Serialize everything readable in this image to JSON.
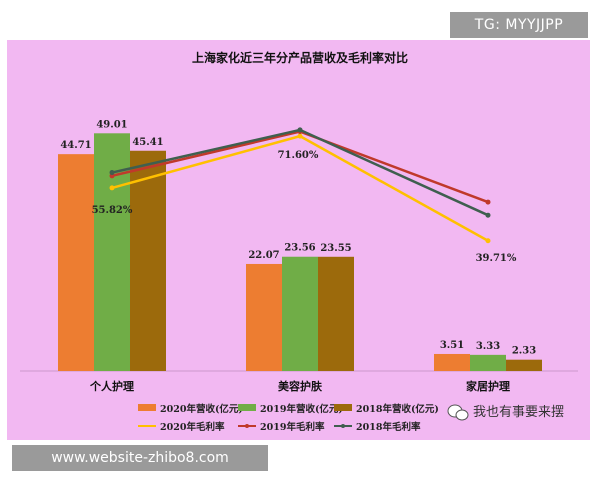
{
  "banners": {
    "top_right": "TG: MYYJJPP",
    "bottom_left": "www.website-zhibo8.com"
  },
  "watermark": "我也有事要来摆",
  "colors": {
    "background": "#f2b8f2",
    "revenue_2020": "#ed7d31",
    "revenue_2019": "#70ad47",
    "revenue_2018": "#9c6a0c",
    "margin_2020": "#ffc000",
    "margin_2019": "#c0392b",
    "margin_2018": "#3f5f4f"
  },
  "chart_data": {
    "type": "bar",
    "title": "上海家化近三年分产品营收及毛利率对比",
    "categories": [
      "个人护理",
      "美容护肤",
      "家居护理"
    ],
    "series": [
      {
        "name": "2020年营收(亿元)",
        "kind": "bar",
        "values": [
          44.71,
          22.07,
          3.51
        ],
        "labels": [
          "44.71",
          "22.07",
          "3.51"
        ]
      },
      {
        "name": "2019年营收(亿元)",
        "kind": "bar",
        "values": [
          49.01,
          23.56,
          3.33
        ],
        "labels": [
          "49.01",
          "23.56",
          "3.33"
        ]
      },
      {
        "name": "2018年营收(亿元)",
        "kind": "bar",
        "values": [
          45.41,
          23.55,
          2.33
        ],
        "labels": [
          "45.41",
          "23.55",
          "2.33"
        ]
      },
      {
        "name": "2020年毛利率",
        "kind": "line",
        "values": [
          55.82,
          71.6,
          39.71
        ],
        "labels": [
          "55.82%",
          "71.60%",
          "39.71%"
        ]
      },
      {
        "name": "2019年毛利率",
        "kind": "line",
        "values": [
          59.5,
          73.0,
          51.5
        ]
      },
      {
        "name": "2018年毛利率",
        "kind": "line",
        "values": [
          60.5,
          73.5,
          47.5
        ]
      }
    ],
    "ylim_revenue": [
      0,
      60
    ],
    "ylim_margin": [
      0,
      100
    ],
    "grid": false,
    "legend_position": "bottom"
  }
}
